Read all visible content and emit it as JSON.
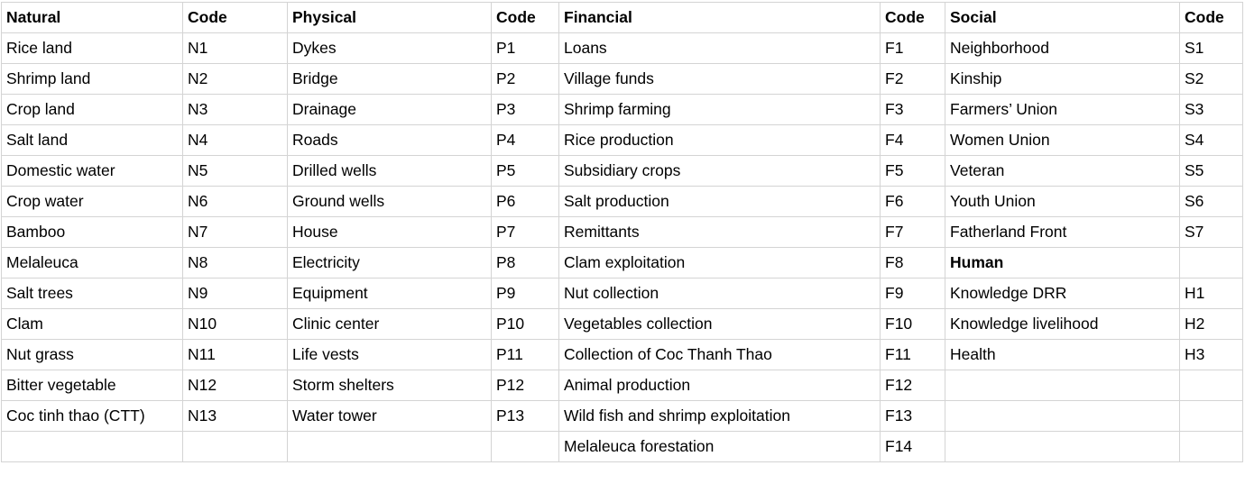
{
  "headers": [
    "Natural",
    "Code",
    "Physical",
    "Code",
    "Financial",
    "Code",
    "Social",
    "Code"
  ],
  "rows": [
    [
      "Rice land",
      "N1",
      "Dykes",
      "P1",
      "Loans",
      "F1",
      "Neighborhood",
      "S1"
    ],
    [
      "Shrimp land",
      "N2",
      "Bridge",
      "P2",
      "Village funds",
      "F2",
      "Kinship",
      "S2"
    ],
    [
      "Crop land",
      "N3",
      "Drainage",
      "P3",
      "Shrimp farming",
      "F3",
      "Farmers’ Union",
      "S3"
    ],
    [
      "Salt land",
      "N4",
      "Roads",
      "P4",
      "Rice production",
      "F4",
      "Women Union",
      "S4"
    ],
    [
      "Domestic water",
      "N5",
      "Drilled wells",
      "P5",
      "Subsidiary crops",
      "F5",
      "Veteran",
      "S5"
    ],
    [
      "Crop water",
      "N6",
      "Ground wells",
      "P6",
      "Salt production",
      "F6",
      "Youth Union",
      "S6"
    ],
    [
      "Bamboo",
      "N7",
      "House",
      "P7",
      "Remittants",
      "F7",
      "Fatherland Front",
      "S7"
    ],
    [
      "Melaleuca",
      "N8",
      "Electricity",
      "P8",
      "Clam exploitation",
      "F8",
      "Human",
      ""
    ],
    [
      "Salt trees",
      "N9",
      "Equipment",
      "P9",
      "Nut collection",
      "F9",
      "Knowledge DRR",
      "H1"
    ],
    [
      "Clam",
      "N10",
      "Clinic center",
      "P10",
      "Vegetables collection",
      "F10",
      "Knowledge livelihood",
      "H2"
    ],
    [
      "Nut grass",
      "N11",
      "Life vests",
      "P11",
      "Collection of Coc Thanh Thao",
      "F11",
      "Health",
      "H3"
    ],
    [
      "Bitter vegetable",
      "N12",
      "Storm shelters",
      "P12",
      "Animal production",
      "F12",
      "",
      ""
    ],
    [
      "Coc tinh thao (CTT)",
      "N13",
      "Water tower",
      "P13",
      "Wild fish and shrimp exploitation",
      "F13",
      "",
      ""
    ],
    [
      "",
      "",
      "",
      "",
      "Melaleuca forestation",
      "F14",
      "",
      ""
    ]
  ]
}
